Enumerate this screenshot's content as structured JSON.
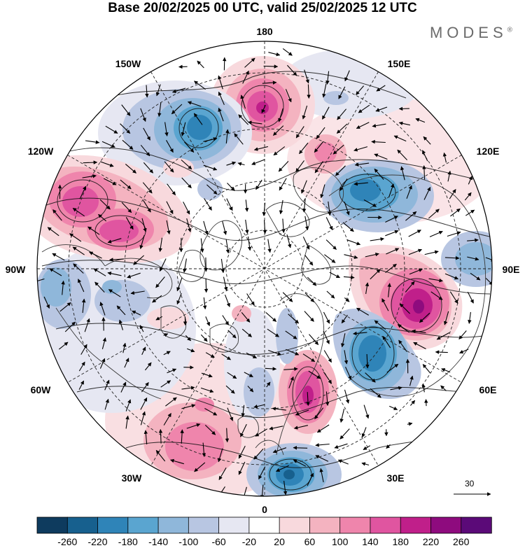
{
  "header": {
    "title": "Base 20/02/2025 00 UTC, valid 25/02/2025 12 UTC",
    "brand": "MODES",
    "brand_mark": "®"
  },
  "map": {
    "projection": "north-polar-stereographic",
    "longitude_labels": {
      "top": "180",
      "top_left": "150W",
      "top_right": "150E",
      "upper_left": "120W",
      "upper_right": "120E",
      "left": "90W",
      "right": "90E",
      "lower_left": "60W",
      "lower_right": "60E",
      "bottom_left": "30W",
      "bottom_right": "30E",
      "bottom": "0"
    },
    "anomaly_centers": [
      {
        "kind": "positive",
        "lon": "180",
        "strength": 180
      },
      {
        "kind": "negative",
        "lon": "150W",
        "strength": -180
      },
      {
        "kind": "positive",
        "lon": "120W",
        "strength": 180
      },
      {
        "kind": "positive",
        "lon": "110W",
        "strength": 180
      },
      {
        "kind": "negative",
        "lon": "120E",
        "strength": -180
      },
      {
        "kind": "positive",
        "lon": "80E",
        "strength": 220
      },
      {
        "kind": "negative",
        "lon": "60E",
        "strength": -180
      },
      {
        "kind": "positive",
        "lon": "20E",
        "strength": 180
      },
      {
        "kind": "negative",
        "lon": "10E",
        "strength": -220
      },
      {
        "kind": "positive",
        "lon": "30W",
        "strength": 140
      }
    ]
  },
  "vector_scale": {
    "label": "30"
  },
  "colorbar": {
    "colors": [
      "#0e3b5e",
      "#17608e",
      "#2f84b8",
      "#5aa5d0",
      "#8fb7da",
      "#b8c6e2",
      "#e6e7f2",
      "#ffffff",
      "#f8d9dd",
      "#f4b3c0",
      "#ef85ac",
      "#e055a0",
      "#c01f8a",
      "#8e0b7e",
      "#5b0a78"
    ],
    "labels": [
      "-260",
      "-220",
      "-180",
      "-140",
      "-100",
      "-60",
      "-20",
      "20",
      "60",
      "100",
      "140",
      "180",
      "220",
      "260"
    ]
  }
}
